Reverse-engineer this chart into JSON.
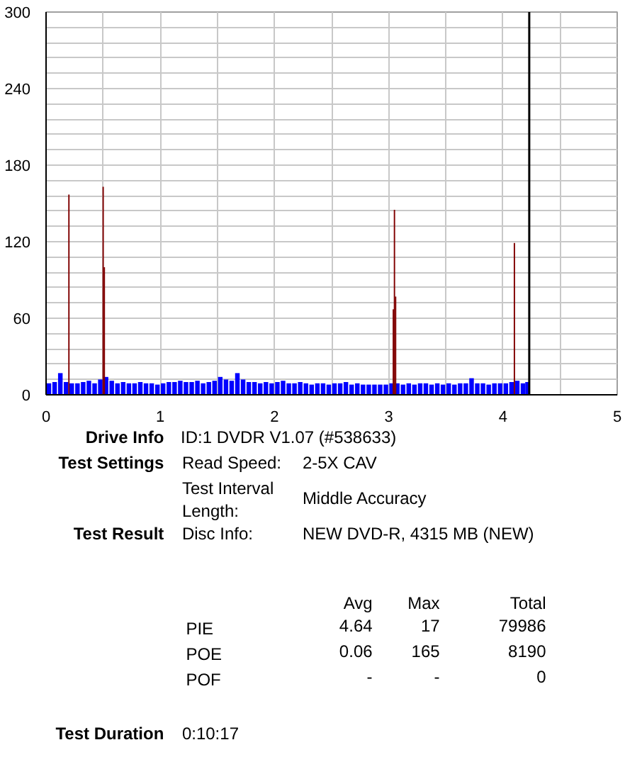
{
  "chart_data": [
    {
      "type": "bar",
      "xlim": [
        0,
        5
      ],
      "ylim": [
        0,
        300
      ],
      "xticks": [
        0,
        {
          "value": 0.5,
          "label": null
        },
        1,
        {
          "value": 1.5,
          "label": null
        },
        2,
        {
          "value": 2.5,
          "label": null
        },
        3,
        {
          "value": 3.5,
          "label": null
        },
        4,
        {
          "value": 4.5,
          "label": null
        },
        5
      ],
      "yticks": [
        0,
        {
          "value": 12,
          "label": null
        },
        {
          "value": 24,
          "label": null
        },
        {
          "value": 36,
          "label": null
        },
        {
          "value": 48,
          "label": null
        },
        60,
        {
          "value": 72,
          "label": null
        },
        {
          "value": 84,
          "label": null
        },
        {
          "value": 96,
          "label": null
        },
        {
          "value": 108,
          "label": null
        },
        120,
        {
          "value": 132,
          "label": null
        },
        {
          "value": 144,
          "label": null
        },
        {
          "value": 156,
          "label": null
        },
        {
          "value": 168,
          "label": null
        },
        180,
        {
          "value": 192,
          "label": null
        },
        {
          "value": 204,
          "label": null
        },
        {
          "value": 216,
          "label": null
        },
        {
          "value": 228,
          "label": null
        },
        240,
        {
          "value": 252,
          "label": null
        },
        {
          "value": 264,
          "label": null
        },
        {
          "value": 276,
          "label": null
        },
        {
          "value": 288,
          "label": null
        },
        300
      ],
      "grid": true,
      "series": [
        {
          "color": "#0000ff",
          "x": [
            0.025,
            0.075,
            0.125,
            0.175,
            0.225,
            0.275,
            0.325,
            0.375,
            0.425,
            0.475,
            0.525,
            0.575,
            0.625,
            0.675,
            0.725,
            0.775,
            0.825,
            0.875,
            0.925,
            0.975,
            1.025,
            1.075,
            1.125,
            1.175,
            1.225,
            1.275,
            1.325,
            1.375,
            1.425,
            1.475,
            1.525,
            1.575,
            1.625,
            1.675,
            1.725,
            1.775,
            1.825,
            1.875,
            1.925,
            1.975,
            2.025,
            2.075,
            2.125,
            2.175,
            2.225,
            2.275,
            2.325,
            2.375,
            2.425,
            2.475,
            2.525,
            2.575,
            2.625,
            2.675,
            2.725,
            2.775,
            2.825,
            2.875,
            2.925,
            2.975,
            3.025,
            3.075,
            3.125,
            3.175,
            3.225,
            3.275,
            3.325,
            3.375,
            3.425,
            3.475,
            3.525,
            3.575,
            3.625,
            3.675,
            3.725,
            3.775,
            3.825,
            3.875,
            3.925,
            3.975,
            4.025,
            4.075,
            4.125,
            4.175,
            4.215
          ],
          "values": [
            9,
            10,
            17,
            10,
            9,
            9,
            10,
            11,
            9,
            12,
            14,
            11,
            9,
            10,
            9,
            9,
            10,
            9,
            9,
            8,
            9,
            10,
            10,
            11,
            10,
            10,
            11,
            9,
            10,
            11,
            14,
            12,
            11,
            17,
            12,
            10,
            10,
            9,
            10,
            9,
            10,
            11,
            9,
            9,
            10,
            9,
            8,
            9,
            9,
            8,
            9,
            9,
            10,
            8,
            9,
            8,
            8,
            8,
            8,
            8,
            9,
            9,
            8,
            9,
            8,
            9,
            9,
            8,
            9,
            8,
            9,
            8,
            9,
            9,
            13,
            9,
            9,
            8,
            9,
            9,
            9,
            10,
            11,
            9,
            10
          ]
        },
        {
          "color": "#800000",
          "x": [
            0.2,
            0.5,
            0.51,
            3.04,
            3.05,
            3.06,
            4.1
          ],
          "values": [
            157,
            163,
            100,
            67,
            145,
            77,
            119
          ]
        }
      ],
      "ref_lines": [
        {
          "axis": "x",
          "value": 4.23,
          "color": "#000000"
        }
      ]
    },
    {
      "type": "other",
      "annotations": [
        "Drive Info",
        "ID:1 DVDR V1.07 (#538633)",
        "Test Settings",
        "Read Speed:",
        "2-5X CAV",
        "Test Interval\nLength:",
        "Middle Accuracy",
        "Test Result",
        "Disc Info:",
        "NEW DVD-R, 4315 MB (NEW)",
        "Avg",
        "Max",
        "Total",
        "PIE",
        "4.64",
        "17",
        "79986",
        "POE",
        "0.06",
        "165",
        "8190",
        "POF",
        "-",
        "-",
        "0",
        "Test Duration",
        "0:10:17"
      ]
    }
  ]
}
